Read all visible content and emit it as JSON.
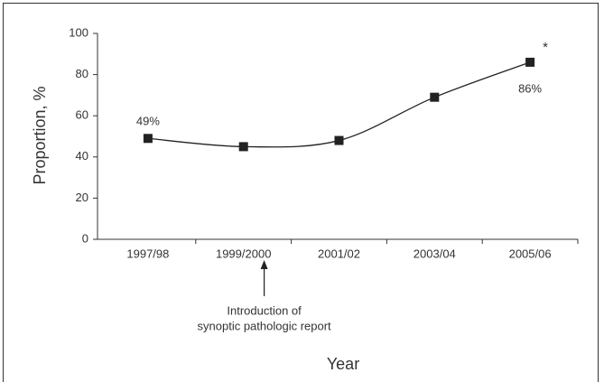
{
  "chart_data": {
    "type": "line",
    "x_label": "Year",
    "y_label": "Proportion, %",
    "categories": [
      "1997/98",
      "1999/2000",
      "2001/02",
      "2003/04",
      "2005/06"
    ],
    "values": [
      49,
      45,
      48,
      69,
      86
    ],
    "value_labels": [
      "49%",
      null,
      null,
      null,
      "86%"
    ],
    "color": "#222222",
    "ylim": [
      0,
      100
    ],
    "yticks": [
      0,
      20,
      40,
      60,
      80,
      100
    ],
    "annotations": {
      "marker": "*",
      "arrow_text": [
        "Introduction of",
        "synoptic pathologic report"
      ]
    }
  }
}
